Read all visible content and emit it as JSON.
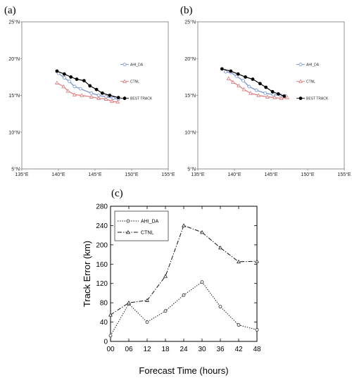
{
  "panels": {
    "a": "(a)",
    "b": "(b)",
    "c": "(c)"
  },
  "chart_data": [
    {
      "type": "line",
      "panel": "(a)",
      "xticks": [
        "135°E",
        "140°E",
        "145°E",
        "150°E",
        "155°E"
      ],
      "yticks": [
        "5°N",
        "10°N",
        "15°N",
        "20°N",
        "25°N"
      ],
      "xlim": [
        135,
        155
      ],
      "ylim": [
        5,
        25
      ],
      "series": [
        {
          "name": "AHI_DA",
          "color": "#6f8fcf",
          "marker": "circle-open",
          "x": [
            140.0,
            140.8,
            141.5,
            142.2,
            143.0,
            144.5,
            145.5,
            146.5,
            147.5,
            148.2
          ],
          "y": [
            18.0,
            17.4,
            16.9,
            16.2,
            15.9,
            15.3,
            15.0,
            14.8,
            14.6,
            14.5
          ]
        },
        {
          "name": "CTNL",
          "color": "#e07878",
          "marker": "triangle-open",
          "x": [
            139.8,
            140.7,
            141.3,
            142.2,
            143.2,
            144.5,
            145.5,
            146.5,
            147.3,
            148.1
          ],
          "y": [
            16.7,
            16.2,
            15.6,
            15.1,
            15.0,
            14.8,
            14.6,
            14.5,
            14.2,
            14.1
          ]
        },
        {
          "name": "BEST TRACK",
          "color": "#000000",
          "marker": "circle-filled",
          "x": [
            139.8,
            140.8,
            141.7,
            142.5,
            143.5,
            144.3,
            145.2,
            146.0,
            147.0,
            148.2
          ],
          "y": [
            18.3,
            17.9,
            17.5,
            17.2,
            17.0,
            16.3,
            15.8,
            15.3,
            15.0,
            14.7
          ]
        }
      ]
    },
    {
      "type": "line",
      "panel": "(b)",
      "xticks": [
        "135°E",
        "140°E",
        "145°E",
        "150°E",
        "155°E"
      ],
      "yticks": [
        "5°N",
        "10°N",
        "15°N",
        "20°N",
        "25°N"
      ],
      "xlim": [
        135,
        155
      ],
      "ylim": [
        5,
        25
      ],
      "series": [
        {
          "name": "AHI_DA",
          "color": "#6f8fcf",
          "marker": "circle-open",
          "x": [
            138.8,
            139.5,
            140.3,
            141.2,
            142.0,
            143.0,
            144.2,
            145.3,
            146.3,
            147.0
          ],
          "y": [
            18.2,
            18.1,
            17.6,
            17.0,
            16.2,
            15.7,
            15.3,
            15.1,
            15.0,
            14.9
          ]
        },
        {
          "name": "CTNL",
          "color": "#e07878",
          "marker": "triangle-open",
          "x": [
            139.2,
            139.8,
            140.6,
            141.3,
            142.2,
            143.3,
            144.5,
            145.5,
            146.4,
            147.2
          ],
          "y": [
            17.3,
            16.8,
            16.3,
            15.8,
            15.3,
            15.0,
            14.8,
            14.7,
            14.6,
            14.7
          ]
        },
        {
          "name": "BEST TRACK",
          "color": "#000000",
          "marker": "circle-filled",
          "x": [
            138.3,
            139.5,
            140.5,
            141.5,
            142.5,
            143.5,
            144.3,
            145.2,
            146.0,
            146.8
          ],
          "y": [
            18.6,
            18.3,
            17.9,
            17.5,
            17.2,
            16.6,
            16.1,
            15.5,
            15.2,
            14.9
          ]
        }
      ]
    },
    {
      "type": "line",
      "panel": "(c)",
      "xlabel": "Forecast Time (hours)",
      "ylabel": "Track Error (km)",
      "x": [
        0,
        6,
        12,
        18,
        24,
        30,
        36,
        42,
        48
      ],
      "xticks": [
        "00",
        "06",
        "12",
        "18",
        "24",
        "30",
        "36",
        "42",
        "48"
      ],
      "yticks": [
        "0",
        "40",
        "80",
        "120",
        "160",
        "200",
        "240",
        "280"
      ],
      "xlim": [
        0,
        48
      ],
      "ylim": [
        0,
        280
      ],
      "series": [
        {
          "name": "AHI_DA",
          "style": "dotted",
          "marker": "circle-open",
          "values": [
            12,
            78,
            40,
            63,
            96,
            123,
            72,
            34,
            24
          ]
        },
        {
          "name": "CTNL",
          "style": "dashdot",
          "marker": "triangle-open",
          "values": [
            55,
            80,
            85,
            135,
            240,
            226,
            194,
            165,
            166
          ]
        }
      ]
    }
  ]
}
